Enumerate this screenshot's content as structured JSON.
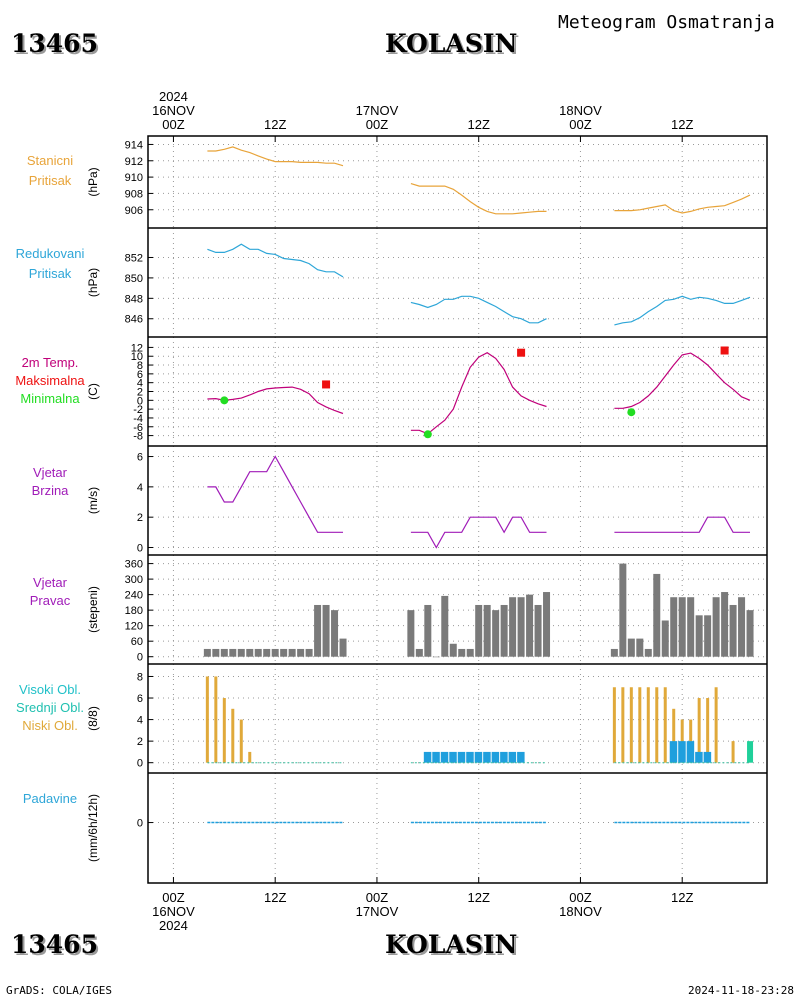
{
  "header": {
    "station_id": "13465",
    "station_name": "KOLASIN",
    "document_title": "Meteogram Osmatranja"
  },
  "footer": {
    "left": "GrADS: COLA/IGES",
    "right": "2024-11-18-23:28"
  },
  "colors": {
    "pressure_station": "#e8a43a",
    "pressure_reduced": "#2ea6d8",
    "temperature": "#c0007a",
    "temp_max": "#ee1111",
    "temp_min": "#22dd22",
    "wind": "#a01cb8",
    "wind_dir_bar": "#7a7a7a",
    "cloud_low": "#e0a93a",
    "cloud_mid": "#1f9fdd",
    "cloud_high": "#20d09a",
    "precip": "#1f9fdd"
  },
  "chart_data": {
    "type": "line",
    "x_unit": "hours since 2024-11-16 00Z",
    "time_axis": {
      "top_labels": [
        {
          "hour": 0,
          "lines": [
            "2024",
            "16NOV",
            "00Z"
          ]
        },
        {
          "hour": 12,
          "lines": [
            "12Z"
          ]
        },
        {
          "hour": 24,
          "lines": [
            "17NOV",
            "00Z"
          ]
        },
        {
          "hour": 36,
          "lines": [
            "12Z"
          ]
        },
        {
          "hour": 48,
          "lines": [
            "18NOV",
            "00Z"
          ]
        },
        {
          "hour": 60,
          "lines": [
            "12Z"
          ]
        }
      ],
      "bottom_labels": [
        {
          "hour": 0,
          "lines": [
            "00Z",
            "16NOV",
            "2024"
          ]
        },
        {
          "hour": 12,
          "lines": [
            "12Z"
          ]
        },
        {
          "hour": 24,
          "lines": [
            "00Z",
            "17NOV"
          ]
        },
        {
          "hour": 36,
          "lines": [
            "12Z"
          ]
        },
        {
          "hour": 48,
          "lines": [
            "00Z",
            "18NOV"
          ]
        },
        {
          "hour": 60,
          "lines": [
            "12Z"
          ]
        }
      ],
      "range": [
        -3,
        70
      ]
    },
    "panels": [
      {
        "id": "station-pressure",
        "labels": [
          {
            "text": "Stanicni",
            "color": "#e8a43a"
          },
          {
            "text": "Pritisak",
            "color": "#e8a43a"
          }
        ],
        "unit": "(hPa)",
        "ylim": [
          904.5,
          914.3
        ],
        "yticks": [
          906,
          908,
          910,
          912,
          914
        ],
        "series": [
          {
            "color": "#e8a43a",
            "x": [
              4,
              5,
              6,
              7,
              8,
              9,
              10,
              11,
              12,
              13,
              14,
              15,
              16,
              17,
              18,
              19,
              20
            ],
            "y": [
              913.2,
              913.2,
              913.4,
              913.7,
              913.3,
              913.0,
              912.6,
              912.2,
              911.9,
              911.9,
              911.9,
              911.8,
              911.8,
              911.8,
              911.7,
              911.7,
              911.4
            ]
          },
          {
            "color": "#e8a43a",
            "x": [
              28,
              29,
              30,
              31,
              32,
              33,
              34,
              35,
              36,
              37,
              38,
              39,
              40,
              41,
              42,
              43,
              44
            ],
            "y": [
              909.2,
              908.9,
              908.9,
              908.9,
              908.9,
              908.5,
              907.8,
              907.0,
              906.3,
              905.8,
              905.5,
              905.5,
              905.5,
              905.6,
              905.7,
              905.8,
              905.8
            ]
          },
          {
            "color": "#e8a43a",
            "x": [
              52,
              53,
              54,
              55,
              56,
              57,
              58,
              59,
              60,
              61,
              62,
              63,
              64,
              65,
              66,
              67,
              68
            ],
            "y": [
              905.9,
              905.9,
              905.9,
              906.0,
              906.2,
              906.4,
              906.6,
              905.9,
              905.6,
              905.8,
              906.1,
              906.3,
              906.4,
              906.5,
              906.9,
              907.3,
              907.8
            ]
          }
        ]
      },
      {
        "id": "reduced-pressure",
        "labels": [
          {
            "text": "Redukovani",
            "color": "#2ea6d8"
          },
          {
            "text": "Pritisak",
            "color": "#2ea6d8"
          }
        ],
        "unit": "(hPa)",
        "ylim": [
          844.8,
          854.3
        ],
        "yticks": [
          846,
          848,
          850,
          852
        ],
        "series": [
          {
            "color": "#2ea6d8",
            "x": [
              4,
              5,
              6,
              7,
              8,
              9,
              10,
              11,
              12,
              13,
              14,
              15,
              16,
              17,
              18,
              19,
              20
            ],
            "y": [
              852.8,
              852.5,
              852.5,
              852.8,
              853.3,
              852.8,
              852.8,
              852.4,
              852.3,
              851.9,
              851.8,
              851.7,
              851.4,
              850.8,
              850.6,
              850.6,
              850.1
            ]
          },
          {
            "color": "#2ea6d8",
            "x": [
              28,
              29,
              30,
              31,
              32,
              33,
              34,
              35,
              36,
              37,
              38,
              39,
              40,
              41,
              42,
              43,
              44
            ],
            "y": [
              847.6,
              847.4,
              847.1,
              847.4,
              847.9,
              847.9,
              848.2,
              848.2,
              848.0,
              847.6,
              847.2,
              846.7,
              846.2,
              846.0,
              845.6,
              845.6,
              846.0
            ]
          },
          {
            "color": "#2ea6d8",
            "x": [
              52,
              53,
              54,
              55,
              56,
              57,
              58,
              59,
              60,
              61,
              62,
              63,
              64,
              65,
              66,
              67,
              68
            ],
            "y": [
              845.4,
              845.6,
              845.7,
              846.1,
              846.7,
              847.2,
              847.8,
              847.9,
              848.2,
              847.9,
              848.1,
              848.0,
              847.8,
              847.5,
              847.5,
              847.8,
              848.1
            ]
          }
        ]
      },
      {
        "id": "temperature",
        "labels": [
          {
            "text": "2m Temp.",
            "color": "#c0007a"
          },
          {
            "text": "Maksimalna",
            "color": "#ee1111"
          },
          {
            "text": "Minimalna",
            "color": "#22dd22"
          }
        ],
        "unit": "(C)",
        "ylim": [
          -9,
          13
        ],
        "yticks": [
          -8,
          -6,
          -4,
          -2,
          0,
          2,
          4,
          6,
          8,
          10,
          12
        ],
        "series": [
          {
            "color": "#c0007a",
            "x": [
              4,
              5,
              6,
              7,
              8,
              9,
              10,
              11,
              12,
              13,
              14,
              15,
              16,
              17,
              18,
              19,
              20
            ],
            "y": [
              0.3,
              0.4,
              0.0,
              0.2,
              0.5,
              1.2,
              2.0,
              2.6,
              2.8,
              2.9,
              3.0,
              2.5,
              1.5,
              -0.5,
              -1.5,
              -2.3,
              -3.0
            ]
          },
          {
            "color": "#c0007a",
            "x": [
              28,
              29,
              30,
              31,
              32,
              33,
              34,
              35,
              36,
              37,
              38,
              39,
              40,
              41,
              42,
              43,
              44
            ],
            "y": [
              -6.8,
              -6.8,
              -7.6,
              -6.0,
              -4.5,
              -2.0,
              3.0,
              7.5,
              9.8,
              10.8,
              9.5,
              7.0,
              3.0,
              1.0,
              0.0,
              -0.8,
              -1.4
            ]
          },
          {
            "color": "#c0007a",
            "x": [
              52,
              53,
              54,
              55,
              56,
              57,
              58,
              59,
              60,
              61,
              62,
              63,
              64,
              65,
              66,
              67,
              68
            ],
            "y": [
              -1.8,
              -1.8,
              -1.4,
              -0.5,
              1.0,
              3.0,
              5.5,
              8.0,
              10.3,
              10.7,
              9.5,
              8.0,
              6.0,
              4.0,
              2.5,
              0.8,
              0.0
            ]
          }
        ],
        "max_points": [
          {
            "x": 18,
            "y": 3.6
          },
          {
            "x": 41,
            "y": 10.8
          },
          {
            "x": 65,
            "y": 11.3
          }
        ],
        "min_points": [
          {
            "x": 6,
            "y": 0.0
          },
          {
            "x": 30,
            "y": -7.7
          },
          {
            "x": 54,
            "y": -2.7
          }
        ]
      },
      {
        "id": "wind-speed",
        "labels": [
          {
            "text": "Vjetar",
            "color": "#a01cb8"
          },
          {
            "text": "Brzina",
            "color": "#a01cb8"
          }
        ],
        "unit": "(m/s)",
        "ylim": [
          -0.1,
          6.3
        ],
        "yticks": [
          0,
          2,
          4,
          6
        ],
        "series": [
          {
            "color": "#a01cb8",
            "x": [
              4,
              5,
              6,
              7,
              8,
              9,
              10,
              11,
              12,
              13,
              14,
              15,
              16,
              17,
              18,
              19,
              20
            ],
            "y": [
              4,
              4,
              3,
              3,
              4,
              5,
              5,
              5,
              6,
              5,
              4,
              3,
              2,
              1,
              1,
              1,
              1
            ]
          },
          {
            "color": "#a01cb8",
            "x": [
              28,
              29,
              30,
              31,
              32,
              33,
              34,
              35,
              36,
              37,
              38,
              39,
              40,
              41,
              42,
              43,
              44
            ],
            "y": [
              1,
              1,
              1,
              0,
              1,
              1,
              1,
              2,
              2,
              2,
              2,
              1,
              2,
              2,
              1,
              1,
              1
            ]
          },
          {
            "color": "#a01cb8",
            "x": [
              52,
              53,
              54,
              55,
              56,
              57,
              58,
              59,
              60,
              61,
              62,
              63,
              64,
              65,
              66,
              67,
              68
            ],
            "y": [
              1,
              1,
              1,
              1,
              1,
              1,
              1,
              1,
              1,
              1,
              1,
              2,
              2,
              2,
              1,
              1,
              1
            ]
          }
        ]
      },
      {
        "id": "wind-direction",
        "labels": [
          {
            "text": "Vjetar",
            "color": "#a01cb8"
          },
          {
            "text": "Pravac",
            "color": "#a01cb8"
          }
        ],
        "unit": "(stepeni)",
        "ylim": [
          -5,
          370
        ],
        "yticks": [
          0,
          60,
          120,
          180,
          240,
          300,
          360
        ],
        "bars": {
          "color": "#7a7a7a",
          "x": [
            4,
            5,
            6,
            7,
            8,
            9,
            10,
            11,
            12,
            13,
            14,
            15,
            16,
            17,
            18,
            19,
            20,
            28,
            29,
            30,
            31,
            32,
            33,
            34,
            35,
            36,
            37,
            38,
            39,
            40,
            41,
            42,
            43,
            44,
            52,
            53,
            54,
            55,
            56,
            57,
            58,
            59,
            60,
            61,
            62,
            63,
            64,
            65,
            66,
            67,
            68
          ],
          "y": [
            30,
            30,
            30,
            30,
            30,
            30,
            30,
            30,
            30,
            30,
            30,
            30,
            30,
            200,
            200,
            180,
            70,
            180,
            30,
            200,
            0,
            235,
            50,
            30,
            30,
            200,
            200,
            180,
            200,
            230,
            230,
            240,
            200,
            250,
            30,
            360,
            70,
            70,
            30,
            320,
            140,
            230,
            230,
            230,
            160,
            160,
            230,
            250,
            200,
            230,
            180
          ]
        },
        "baseline_color": "#c05050"
      },
      {
        "id": "cloud-cover",
        "labels": [
          {
            "text": "Visoki Obl.",
            "color": "#20c0c8"
          },
          {
            "text": "Srednji Obl.",
            "color": "#20c0b0"
          },
          {
            "text": "Niski Obl.",
            "color": "#e0a93a"
          }
        ],
        "unit": "(8/8)",
        "ylim": [
          -0.4,
          8.6
        ],
        "yticks": [
          0,
          2,
          4,
          6,
          8
        ],
        "low": {
          "color": "#e0a93a",
          "x": [
            4,
            5,
            6,
            7,
            8,
            9,
            52,
            53,
            54,
            55,
            56,
            57,
            58,
            59,
            60,
            61,
            62,
            63,
            64,
            66
          ],
          "y": [
            8,
            8,
            6,
            5,
            4,
            1,
            7,
            7,
            7,
            7,
            7,
            7,
            7,
            5,
            4,
            4,
            6,
            6,
            7,
            2
          ]
        },
        "mid": {
          "color": "#1f9fdd",
          "x": [
            30,
            31,
            32,
            33,
            34,
            35,
            36,
            37,
            38,
            39,
            40,
            41,
            59,
            60,
            61,
            62,
            63
          ],
          "y": [
            1,
            1,
            1,
            1,
            1,
            1,
            1,
            1,
            1,
            1,
            1,
            1,
            2,
            2,
            2,
            1,
            1
          ]
        },
        "high": {
          "color": "#20d09a",
          "x": [
            68
          ],
          "y": [
            2
          ]
        }
      },
      {
        "id": "precipitation",
        "labels": [
          {
            "text": "Padavine",
            "color": "#2ea6d8"
          }
        ],
        "unit": "(mm/6h/12h)",
        "ylim": [
          -5,
          4
        ],
        "yticks": [
          0
        ],
        "zero_segments": [
          [
            4,
            20
          ],
          [
            28,
            44
          ],
          [
            52,
            68
          ]
        ],
        "color": "#1f9fdd"
      }
    ]
  }
}
